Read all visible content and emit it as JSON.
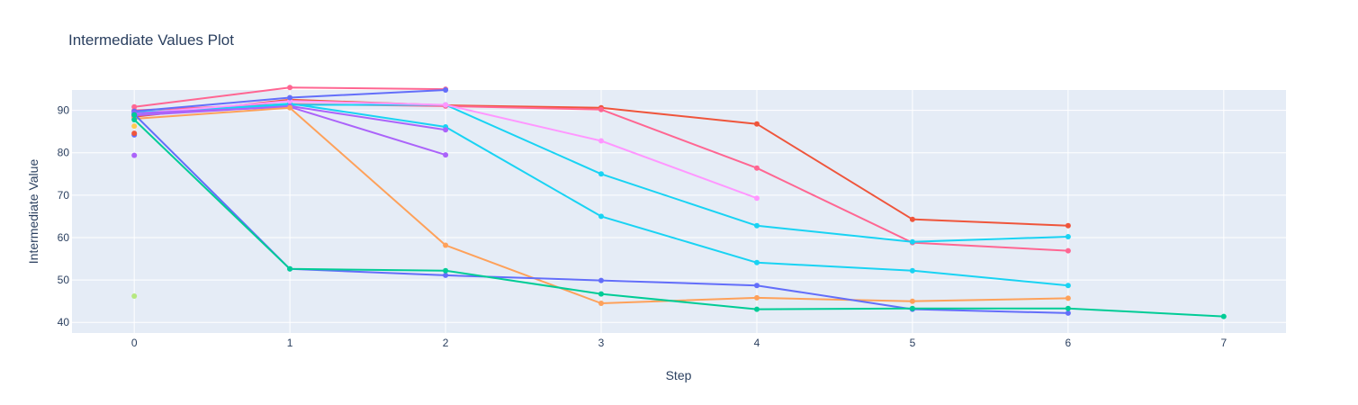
{
  "chart_data": {
    "type": "line",
    "title": "Intermediate Values Plot",
    "xlabel": "Step",
    "ylabel": "Intermediate Value",
    "xlim": [
      -0.4,
      7.4
    ],
    "ylim": [
      37.5,
      94.8
    ],
    "x_ticks": [
      0,
      1,
      2,
      3,
      4,
      5,
      6,
      7
    ],
    "y_ticks": [
      40,
      50,
      60,
      70,
      80,
      90
    ],
    "grid": true,
    "legend": "none",
    "colors": {
      "plot_bg": "#e5ecf6",
      "grid": "#ffffff",
      "text": "#2a3f5f"
    },
    "series": [
      {
        "color": "#ef553b",
        "x": [
          0,
          1,
          2,
          3,
          4,
          5,
          6
        ],
        "y": [
          88.5,
          92.5,
          91.2,
          90.6,
          86.8,
          64.3,
          62.8
        ]
      },
      {
        "color": "#ff6692",
        "x": [
          0,
          1,
          2,
          3,
          4,
          5,
          6
        ],
        "y": [
          90.0,
          91.5,
          91.0,
          90.2,
          76.4,
          58.8,
          56.9
        ]
      },
      {
        "color": "#19d3f3",
        "x": [
          0,
          1,
          2,
          3,
          4,
          5,
          6
        ],
        "y": [
          89.5,
          91.3,
          91.3,
          75.0,
          62.8,
          59.0,
          60.2
        ]
      },
      {
        "color": "#19d3f3",
        "x": [
          0,
          1,
          2,
          3,
          4,
          5,
          6
        ],
        "y": [
          89.0,
          91.6,
          86.1,
          65.0,
          54.1,
          52.2,
          48.7
        ]
      },
      {
        "color": "#ff97ff",
        "x": [
          0,
          1,
          2,
          3,
          4
        ],
        "y": [
          89.2,
          92.2,
          91.3,
          82.8,
          69.3
        ]
      },
      {
        "color": "#ff6692",
        "x": [
          0,
          1,
          2
        ],
        "y": [
          90.8,
          95.4,
          95.0
        ]
      },
      {
        "color": "#636efa",
        "x": [
          0,
          1,
          2
        ],
        "y": [
          89.8,
          93.0,
          94.8
        ]
      },
      {
        "color": "#ab63fa",
        "x": [
          0,
          1,
          2
        ],
        "y": [
          88.8,
          91.0,
          85.4
        ]
      },
      {
        "color": "#ab63fa",
        "x": [
          0,
          1,
          2
        ],
        "y": [
          89.3,
          90.8,
          79.5
        ]
      },
      {
        "color": "#fea15a",
        "x": [
          0,
          1,
          2,
          3,
          4,
          5,
          6
        ],
        "y": [
          88.0,
          90.6,
          58.2,
          44.5,
          45.8,
          45.0,
          45.7
        ]
      },
      {
        "color": "#636efa",
        "x": [
          0,
          1,
          2,
          3,
          4,
          5,
          6
        ],
        "y": [
          89.1,
          52.6,
          51.1,
          49.9,
          48.7,
          43.1,
          42.2
        ]
      },
      {
        "color": "#00cc96",
        "x": [
          0,
          1,
          2,
          3,
          4,
          5,
          6,
          7
        ],
        "y": [
          87.8,
          52.6,
          52.2,
          46.7,
          43.1,
          43.3,
          43.3,
          41.4
        ]
      },
      {
        "color": "#ab63fa",
        "x": [
          0
        ],
        "y": [
          79.4
        ]
      },
      {
        "color": "#636efa",
        "x": [
          0
        ],
        "y": [
          84.2
        ]
      },
      {
        "color": "#b6e880",
        "x": [
          0
        ],
        "y": [
          46.2
        ]
      },
      {
        "color": "#fecb52",
        "x": [
          0
        ],
        "y": [
          86.3
        ]
      },
      {
        "color": "#00cc96",
        "x": [
          0
        ],
        "y": [
          88.9
        ]
      },
      {
        "color": "#ef553b",
        "x": [
          0
        ],
        "y": [
          84.6
        ]
      }
    ]
  }
}
